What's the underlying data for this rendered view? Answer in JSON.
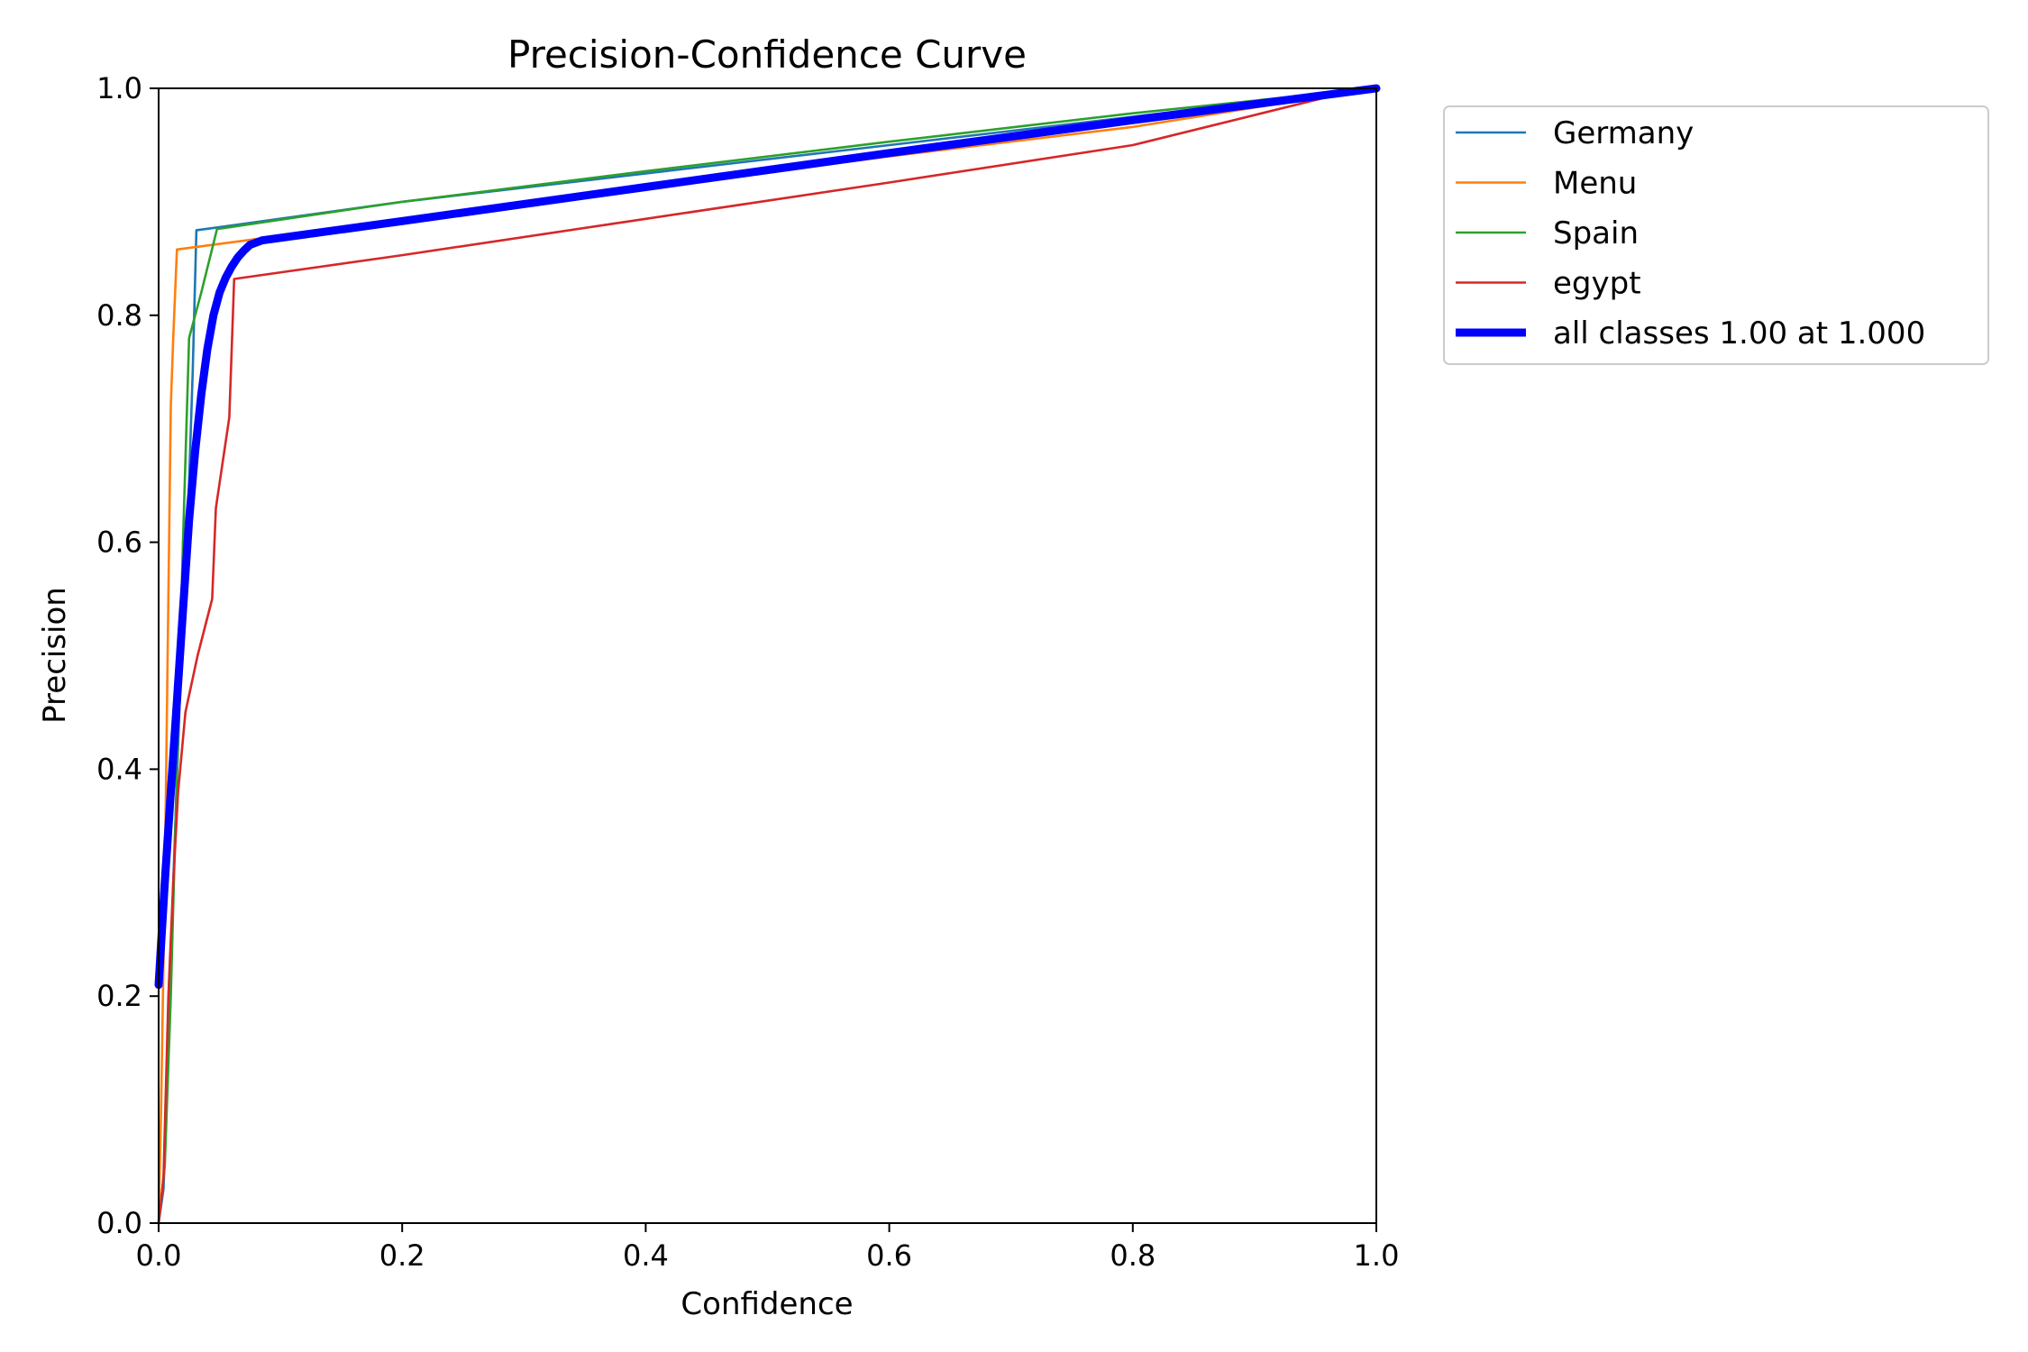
{
  "chart_data": {
    "type": "line",
    "title": "Precision-Confidence Curve",
    "xlabel": "Confidence",
    "ylabel": "Precision",
    "xlim": [
      0,
      1
    ],
    "ylim": [
      0,
      1
    ],
    "xticks": [
      "0.0",
      "0.2",
      "0.4",
      "0.6",
      "0.8",
      "1.0"
    ],
    "yticks": [
      "0.0",
      "0.2",
      "0.4",
      "0.6",
      "0.8",
      "1.0"
    ],
    "grid": false,
    "legend_position": "outside-top-right",
    "series": [
      {
        "name": "Germany",
        "color": "#1f77b4",
        "width": "thin",
        "points": [
          [
            0.0,
            0.0
          ],
          [
            0.004,
            0.03
          ],
          [
            0.008,
            0.15
          ],
          [
            0.012,
            0.3
          ],
          [
            0.018,
            0.48
          ],
          [
            0.024,
            0.62
          ],
          [
            0.028,
            0.75
          ],
          [
            0.031,
            0.875
          ],
          [
            0.045,
            0.877
          ],
          [
            0.2,
            0.9
          ],
          [
            0.4,
            0.925
          ],
          [
            0.6,
            0.95
          ],
          [
            0.8,
            0.975
          ],
          [
            0.97,
            0.996
          ],
          [
            1.0,
            1.0
          ]
        ]
      },
      {
        "name": "Menu",
        "color": "#ff7f0e",
        "width": "thin",
        "points": [
          [
            0.0,
            0.0
          ],
          [
            0.002,
            0.1
          ],
          [
            0.005,
            0.3
          ],
          [
            0.008,
            0.55
          ],
          [
            0.01,
            0.72
          ],
          [
            0.012,
            0.78
          ],
          [
            0.015,
            0.858
          ],
          [
            0.1,
            0.87
          ],
          [
            0.2,
            0.885
          ],
          [
            0.4,
            0.912
          ],
          [
            0.6,
            0.94
          ],
          [
            0.8,
            0.966
          ],
          [
            0.97,
            0.995
          ],
          [
            1.0,
            1.0
          ]
        ]
      },
      {
        "name": "Spain",
        "color": "#2ca02c",
        "width": "thin",
        "points": [
          [
            0.0,
            0.0
          ],
          [
            0.005,
            0.05
          ],
          [
            0.01,
            0.2
          ],
          [
            0.015,
            0.4
          ],
          [
            0.02,
            0.6
          ],
          [
            0.025,
            0.78
          ],
          [
            0.035,
            0.82
          ],
          [
            0.048,
            0.876
          ],
          [
            0.2,
            0.9
          ],
          [
            0.4,
            0.927
          ],
          [
            0.6,
            0.953
          ],
          [
            0.8,
            0.978
          ],
          [
            0.97,
            0.997
          ],
          [
            1.0,
            1.0
          ]
        ]
      },
      {
        "name": "egypt",
        "color": "#d62728",
        "width": "thin",
        "points": [
          [
            0.0,
            0.0
          ],
          [
            0.004,
            0.04
          ],
          [
            0.008,
            0.2
          ],
          [
            0.012,
            0.3
          ],
          [
            0.016,
            0.38
          ],
          [
            0.022,
            0.45
          ],
          [
            0.032,
            0.5
          ],
          [
            0.044,
            0.55
          ],
          [
            0.047,
            0.63
          ],
          [
            0.058,
            0.71
          ],
          [
            0.062,
            0.832
          ],
          [
            0.2,
            0.853
          ],
          [
            0.4,
            0.885
          ],
          [
            0.6,
            0.917
          ],
          [
            0.8,
            0.95
          ],
          [
            0.97,
            0.995
          ],
          [
            1.0,
            1.0
          ]
        ]
      },
      {
        "name": "all classes 1.00 at 1.000",
        "color": "#0000ff",
        "width": "thick",
        "points": [
          [
            0.0,
            0.21
          ],
          [
            0.005,
            0.3
          ],
          [
            0.01,
            0.38
          ],
          [
            0.015,
            0.46
          ],
          [
            0.02,
            0.54
          ],
          [
            0.025,
            0.62
          ],
          [
            0.03,
            0.68
          ],
          [
            0.035,
            0.73
          ],
          [
            0.04,
            0.77
          ],
          [
            0.045,
            0.8
          ],
          [
            0.05,
            0.82
          ],
          [
            0.055,
            0.833
          ],
          [
            0.06,
            0.843
          ],
          [
            0.065,
            0.851
          ],
          [
            0.07,
            0.857
          ],
          [
            0.075,
            0.862
          ],
          [
            0.085,
            0.866
          ],
          [
            0.2,
            0.883
          ],
          [
            0.4,
            0.913
          ],
          [
            0.6,
            0.943
          ],
          [
            0.8,
            0.972
          ],
          [
            0.95,
            0.993
          ],
          [
            1.0,
            1.0
          ]
        ]
      }
    ]
  }
}
